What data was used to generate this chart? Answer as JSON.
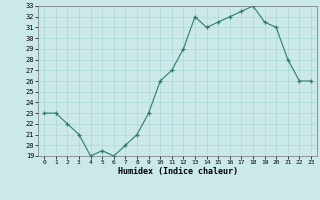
{
  "x": [
    0,
    1,
    2,
    3,
    4,
    5,
    6,
    7,
    8,
    9,
    10,
    11,
    12,
    13,
    14,
    15,
    16,
    17,
    18,
    19,
    20,
    21,
    22,
    23
  ],
  "y": [
    23,
    23,
    22,
    21,
    19,
    19.5,
    19,
    20,
    21,
    23,
    26,
    27,
    29,
    32,
    31,
    31.5,
    32,
    32.5,
    33,
    31.5,
    31,
    28,
    26,
    26
  ],
  "xlabel": "Humidex (Indice chaleur)",
  "ylim": [
    19,
    33
  ],
  "xlim": [
    -0.5,
    23.5
  ],
  "yticks": [
    19,
    20,
    21,
    22,
    23,
    24,
    25,
    26,
    27,
    28,
    29,
    30,
    31,
    32,
    33
  ],
  "xticks": [
    0,
    1,
    2,
    3,
    4,
    5,
    6,
    7,
    8,
    9,
    10,
    11,
    12,
    13,
    14,
    15,
    16,
    17,
    18,
    19,
    20,
    21,
    22,
    23
  ],
  "line_color": "#2d7d6d",
  "bg_color": "#cce9e9",
  "grid_color": "#aad8d8"
}
